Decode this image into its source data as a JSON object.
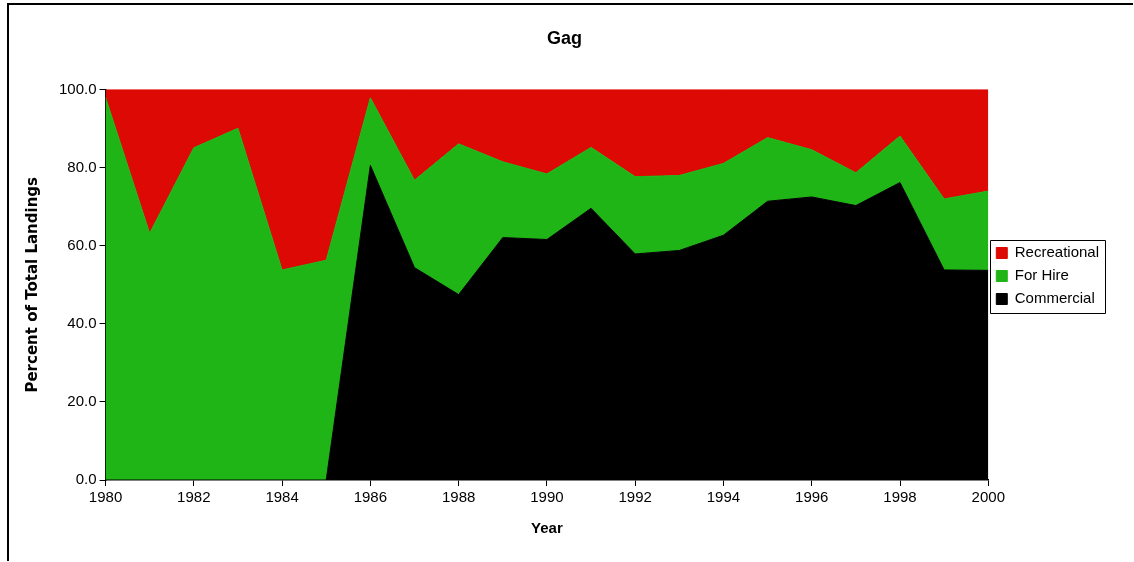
{
  "chart_data": {
    "type": "area",
    "title": "Gag",
    "xlabel": "Year",
    "ylabel": "Percent of Total Landings",
    "x": [
      1980,
      1981,
      1982,
      1983,
      1984,
      1985,
      1986,
      1987,
      1988,
      1989,
      1990,
      1991,
      1992,
      1993,
      1994,
      1995,
      1996,
      1997,
      1998,
      1999,
      2000
    ],
    "stacked": true,
    "series": [
      {
        "name": "Commercial",
        "color": "#000000",
        "values": [
          0,
          0,
          0,
          0,
          0,
          0,
          80.6,
          54.4,
          47.5,
          62.1,
          61.6,
          69.6,
          57.9,
          58.8,
          62.7,
          71.4,
          72.5,
          70.3,
          76.2,
          53.8,
          53.7
        ]
      },
      {
        "name": "For Hire",
        "color": "#1fb517",
        "values": [
          98,
          63.2,
          85.1,
          90.1,
          53.8,
          56.3,
          17.3,
          22.4,
          38.6,
          19.4,
          16.8,
          15.6,
          19.8,
          19.2,
          18.4,
          16.3,
          12.1,
          8.4,
          11.9,
          18.2,
          20.3
        ]
      },
      {
        "name": "Recreational",
        "color": "#dd0905",
        "values": [
          2,
          36.8,
          14.9,
          9.9,
          46.2,
          43.7,
          2.1,
          23.2,
          13.9,
          18.5,
          21.6,
          14.8,
          22.3,
          22,
          18.9,
          12.3,
          15.4,
          21.3,
          11.9,
          28,
          26
        ]
      }
    ],
    "xlim": [
      1980,
      2000
    ],
    "xticks": [
      1980,
      1982,
      1984,
      1986,
      1988,
      1990,
      1992,
      1994,
      1996,
      1998,
      2000
    ],
    "ylim": [
      0,
      100
    ],
    "yticks": [
      {
        "value": 0,
        "label": "0.0"
      },
      {
        "value": 20,
        "label": "20.0"
      },
      {
        "value": 40,
        "label": "40.0"
      },
      {
        "value": 60,
        "label": "60.0"
      },
      {
        "value": 80,
        "label": "80.0"
      },
      {
        "value": 100,
        "label": "100.0"
      }
    ],
    "grid": false,
    "legend": "right"
  }
}
